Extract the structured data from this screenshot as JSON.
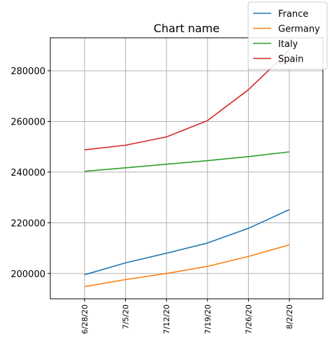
{
  "chart_data": {
    "type": "line",
    "title": "Chart name",
    "xlabel": "",
    "ylabel": "",
    "categories": [
      "6/28/20",
      "7/5/20",
      "7/12/20",
      "7/19/20",
      "7/26/20",
      "8/2/20"
    ],
    "series": [
      {
        "name": "France",
        "color": "#1f77b4",
        "values": [
          199500,
          204200,
          208000,
          212000,
          217800,
          225200
        ]
      },
      {
        "name": "Germany",
        "color": "#ff7f0e",
        "values": [
          194800,
          197600,
          200000,
          202800,
          206700,
          211300
        ]
      },
      {
        "name": "Italy",
        "color": "#2ca02c",
        "values": [
          240300,
          241700,
          243100,
          244500,
          246100,
          248000
        ]
      },
      {
        "name": "Spain",
        "color": "#d62728",
        "values": [
          248800,
          250600,
          253900,
          260300,
          272500,
          288000
        ]
      }
    ],
    "ylim": [
      190000,
      293000
    ],
    "yticks": [
      200000,
      220000,
      240000,
      260000,
      280000
    ],
    "ytick_labels": [
      "200000",
      "220000",
      "240000",
      "260000",
      "280000"
    ],
    "grid": true,
    "legend_position": "top-right"
  }
}
